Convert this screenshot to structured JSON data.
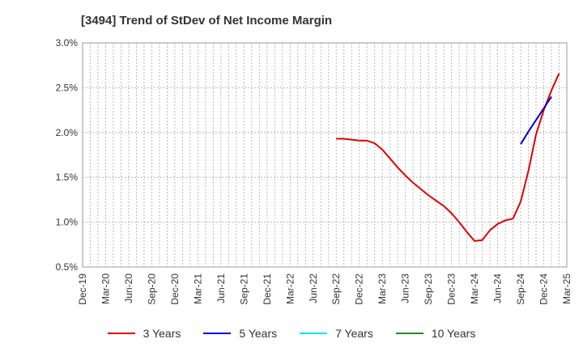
{
  "chart_data": {
    "type": "line",
    "title": "[3494]  Trend of StDev of Net Income Margin",
    "xlabel": "",
    "ylabel": "",
    "ylim": [
      0.5,
      3.0
    ],
    "yticks": [
      "0.5%",
      "1.0%",
      "1.5%",
      "2.0%",
      "2.5%",
      "3.0%"
    ],
    "categories": [
      "Dec-19",
      "Mar-20",
      "Jun-20",
      "Sep-20",
      "Dec-20",
      "Mar-21",
      "Jun-21",
      "Sep-21",
      "Dec-21",
      "Mar-22",
      "Jun-22",
      "Sep-22",
      "Dec-22",
      "Mar-23",
      "Jun-23",
      "Sep-23",
      "Dec-23",
      "Mar-24",
      "Jun-24",
      "Sep-24",
      "Dec-24",
      "Mar-25"
    ],
    "grid": true,
    "legend_position": "bottom",
    "series": [
      {
        "name": "3 Years",
        "color": "#dd0000",
        "points": [
          [
            33,
            1.93
          ],
          [
            34,
            1.93
          ],
          [
            35,
            1.92
          ],
          [
            36,
            1.91
          ],
          [
            37,
            1.91
          ],
          [
            38,
            1.88
          ],
          [
            39,
            1.81
          ],
          [
            40,
            1.71
          ],
          [
            41,
            1.61
          ],
          [
            42,
            1.52
          ],
          [
            43,
            1.44
          ],
          [
            44,
            1.37
          ],
          [
            45,
            1.3
          ],
          [
            46,
            1.24
          ],
          [
            47,
            1.18
          ],
          [
            48,
            1.1
          ],
          [
            49,
            1.0
          ],
          [
            50,
            0.89
          ],
          [
            51,
            0.79
          ],
          [
            52,
            0.8
          ],
          [
            53,
            0.91
          ],
          [
            54,
            0.98
          ],
          [
            55,
            1.02
          ],
          [
            56,
            1.04
          ],
          [
            57,
            1.23
          ],
          [
            58,
            1.57
          ],
          [
            59,
            1.98
          ],
          [
            60,
            2.25
          ],
          [
            61,
            2.47
          ],
          [
            62,
            2.66
          ]
        ]
      },
      {
        "name": "5 Years",
        "color": "#0000cc",
        "points": [
          [
            57,
            1.87
          ],
          [
            58,
            2.01
          ],
          [
            59,
            2.14
          ],
          [
            60,
            2.27
          ],
          [
            61,
            2.4
          ]
        ]
      },
      {
        "name": "7 Years",
        "color": "#00e5ee",
        "points": []
      },
      {
        "name": "10 Years",
        "color": "#228b22",
        "points": []
      }
    ]
  }
}
